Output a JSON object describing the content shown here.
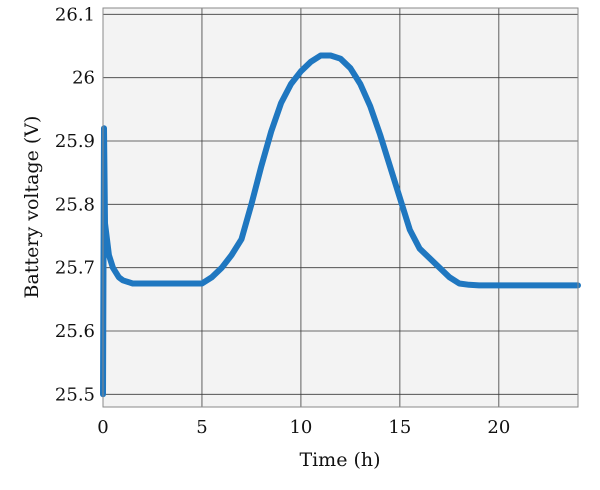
{
  "chart_data": {
    "type": "line",
    "xlabel": "Time (h)",
    "ylabel": "Battery voltage (V)",
    "xlim": [
      0,
      24
    ],
    "ylim": [
      25.48,
      26.11
    ],
    "xticks": [
      0,
      5,
      10,
      15,
      20
    ],
    "xtick_labels": [
      "0",
      "5",
      "10",
      "15",
      "20"
    ],
    "yticks": [
      25.5,
      25.6,
      25.7,
      25.8,
      25.9,
      26.0,
      26.1
    ],
    "ytick_labels": [
      "25.5",
      "25.6",
      "25.7",
      "25.8",
      "25.9",
      "26",
      "26.1"
    ],
    "grid": true,
    "colors": {
      "line": "#1f77c0",
      "plot_background": "#f3f3f3",
      "grid": "#3a3a3a"
    },
    "series": [
      {
        "name": "",
        "x": [
          0.0,
          0.05,
          0.1,
          0.3,
          0.5,
          0.8,
          1.0,
          1.5,
          2.0,
          3.0,
          4.0,
          5.0,
          5.5,
          6.0,
          6.5,
          7.0,
          7.5,
          8.0,
          8.5,
          9.0,
          9.5,
          10.0,
          10.5,
          11.0,
          11.5,
          12.0,
          12.5,
          13.0,
          13.5,
          14.0,
          14.5,
          15.0,
          15.5,
          16.0,
          16.5,
          17.0,
          17.5,
          18.0,
          18.5,
          19.0,
          20.0,
          22.0,
          24.0
        ],
        "y": [
          25.5,
          25.92,
          25.77,
          25.72,
          25.7,
          25.685,
          25.68,
          25.675,
          25.675,
          25.675,
          25.675,
          25.675,
          25.685,
          25.7,
          25.72,
          25.745,
          25.8,
          25.86,
          25.915,
          25.96,
          25.99,
          26.01,
          26.025,
          26.035,
          26.035,
          26.03,
          26.015,
          25.99,
          25.955,
          25.91,
          25.86,
          25.81,
          25.76,
          25.73,
          25.715,
          25.7,
          25.685,
          25.675,
          25.673,
          25.672,
          25.672,
          25.672,
          25.672
        ]
      }
    ]
  }
}
